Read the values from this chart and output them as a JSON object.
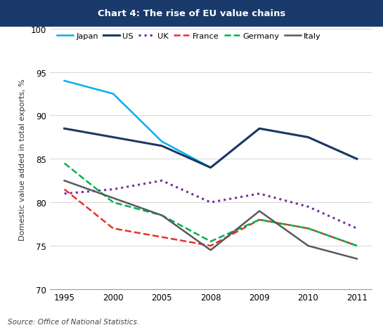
{
  "title": "Chart 4: The rise of EU value chains",
  "title_bg_color": "#1a3a6b",
  "title_text_color": "#ffffff",
  "ylabel": "Domestic value added in total exports, %",
  "source": "Source: Office of National Statistics.",
  "ylim": [
    70,
    100
  ],
  "yticks": [
    70,
    75,
    80,
    85,
    90,
    95,
    100
  ],
  "x_years": [
    1995,
    2000,
    2005,
    2008,
    2009,
    2010,
    2011
  ],
  "x_positions": [
    0,
    1,
    2,
    3,
    4,
    5,
    6
  ],
  "series": {
    "Japan": {
      "values": [
        94.0,
        92.5,
        87.0,
        84.0,
        88.5,
        87.5,
        85.0
      ],
      "color": "#00b0f0",
      "linestyle": "solid",
      "linewidth": 1.8,
      "dashes": null
    },
    "US": {
      "values": [
        88.5,
        87.5,
        86.5,
        84.0,
        88.5,
        87.5,
        85.0
      ],
      "color": "#1f3864",
      "linestyle": "solid",
      "linewidth": 2.2,
      "dashes": null
    },
    "UK": {
      "values": [
        81.0,
        81.5,
        82.5,
        80.0,
        81.0,
        79.5,
        77.0
      ],
      "color": "#7030a0",
      "linestyle": "dotted",
      "linewidth": 2.2,
      "dashes": null
    },
    "France": {
      "values": [
        81.5,
        77.0,
        76.0,
        75.0,
        78.0,
        77.0,
        75.0
      ],
      "color": "#e8312a",
      "linestyle": "dashed",
      "linewidth": 1.8,
      "dashes": null
    },
    "Germany": {
      "values": [
        84.5,
        80.0,
        78.5,
        75.5,
        78.0,
        77.0,
        75.0
      ],
      "color": "#00b050",
      "linestyle": "dashed",
      "linewidth": 1.8,
      "dashes": null
    },
    "Italy": {
      "values": [
        82.5,
        80.5,
        78.5,
        74.5,
        79.0,
        75.0,
        73.5
      ],
      "color": "#595959",
      "linestyle": "solid",
      "linewidth": 1.8,
      "dashes": null
    }
  },
  "legend_order": [
    "Japan",
    "US",
    "UK",
    "France",
    "Germany",
    "Italy"
  ],
  "bg_color": "#ffffff",
  "plot_bg_color": "#ffffff",
  "grid_color": "#d0d0d0"
}
